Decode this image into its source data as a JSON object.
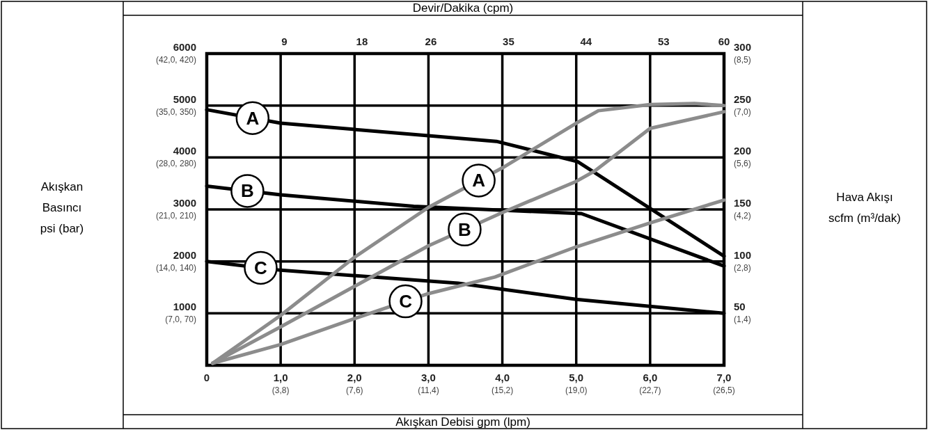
{
  "chart_data": {
    "type": "line",
    "xlabel": "Akışkan Debisi gpm (lpm)",
    "x2label": "Devir/Dakika (cpm)",
    "xlim": [
      0,
      7
    ],
    "xticks": [
      0,
      {
        "value": 1,
        "label": "1,0"
      },
      {
        "value": 2,
        "label": "2,0"
      },
      {
        "value": 3,
        "label": "3,0"
      },
      {
        "value": 4,
        "label": "4,0"
      },
      {
        "value": 5,
        "label": "5,0"
      },
      {
        "value": 6,
        "label": "6,0"
      },
      {
        "value": 7,
        "label": "7,0"
      }
    ],
    "annotations": [
      "(3,8)",
      "(7,6)",
      "(11,4)",
      "(15,2)",
      "(19,0)",
      "(22,7)",
      "(26,5)",
      "(7,0, 70)",
      "(14,0, 140)",
      "(21,0, 210)",
      "(28,0, 280)",
      "(35,0, 350)",
      "(42,0, 420)",
      "(1,4)",
      "(2,8)",
      "(4,2)",
      "(5,6)",
      "(7,0)",
      "(8,5)",
      "Akışkan\nBasıncı\npsi (bar)",
      "Hava Akışı\nscfm (m³/dak)"
    ],
    "x2lim": [
      0,
      60
    ],
    "x2ticks": [
      9,
      18,
      26,
      35,
      44,
      53,
      60
    ],
    "ylim": [
      0,
      6000
    ],
    "yticks": [
      1000,
      2000,
      3000,
      4000,
      5000,
      6000
    ],
    "y2lim": [
      0,
      300
    ],
    "y2ticks": [
      50,
      100,
      150,
      200,
      250,
      300
    ],
    "grid": true,
    "marker": "none",
    "line_style": "solid",
    "series": [
      {
        "name": "A",
        "color": "#000000",
        "x": [
          0,
          1,
          3.92,
          5.02,
          7
        ],
        "values": [
          4920,
          4660,
          4310,
          3920,
          2100
        ]
      },
      {
        "name": "B",
        "color": "#000000",
        "x": [
          0,
          1,
          2.8,
          5.07,
          7
        ],
        "values": [
          3450,
          3280,
          3060,
          2920,
          1910
        ]
      },
      {
        "name": "C",
        "color": "#000000",
        "x": [
          0,
          1,
          3.4,
          5,
          7
        ],
        "values": [
          2000,
          1830,
          1580,
          1270,
          1000
        ]
      },
      {
        "name": "A",
        "color": "#8c8c8c",
        "axis": "y2",
        "x": [
          0.08,
          1,
          2,
          3,
          4,
          5,
          5.3,
          6,
          6.6,
          7
        ],
        "values": [
          2,
          48,
          104,
          152,
          190,
          233,
          245,
          251,
          252,
          250
        ]
      },
      {
        "name": "B",
        "color": "#8c8c8c",
        "axis": "y2",
        "x": [
          0.08,
          1,
          2,
          3,
          4,
          5,
          5.25,
          6,
          7
        ],
        "values": [
          2,
          37,
          76,
          115,
          147,
          177,
          187,
          228,
          244
        ]
      },
      {
        "name": "C",
        "color": "#8c8c8c",
        "axis": "y2",
        "x": [
          0.08,
          1,
          2,
          3,
          3.9,
          5,
          6,
          7
        ],
        "values": [
          2,
          20,
          45,
          69,
          85,
          114,
          137,
          159
        ]
      }
    ]
  }
}
